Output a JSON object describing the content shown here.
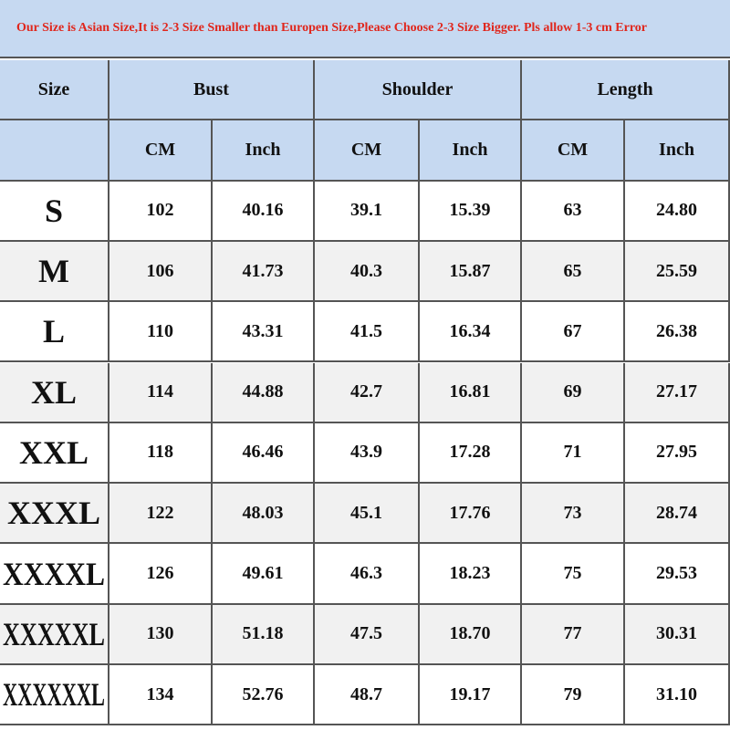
{
  "banner": "Our Size is Asian Size,It is 2-3 Size Smaller than Europen Size,Please Choose 2-3 Size Bigger. Pls allow 1-3 cm Error",
  "table": {
    "header": {
      "size": "Size",
      "groups": [
        "Bust",
        "Shoulder",
        "Length"
      ],
      "units": [
        "CM",
        "Inch",
        "CM",
        "Inch",
        "CM",
        "Inch"
      ]
    },
    "rows": [
      [
        "S",
        "102",
        "40.16",
        "39.1",
        "15.39",
        "63",
        "24.80"
      ],
      [
        "M",
        "106",
        "41.73",
        "40.3",
        "15.87",
        "65",
        "25.59"
      ],
      [
        "L",
        "110",
        "43.31",
        "41.5",
        "16.34",
        "67",
        "26.38"
      ],
      [
        "XL",
        "114",
        "44.88",
        "42.7",
        "16.81",
        "69",
        "27.17"
      ],
      [
        "XXL",
        "118",
        "46.46",
        "43.9",
        "17.28",
        "71",
        "27.95"
      ],
      [
        "XXXL",
        "122",
        "48.03",
        "45.1",
        "17.76",
        "73",
        "28.74"
      ],
      [
        "XXXXL",
        "126",
        "49.61",
        "46.3",
        "18.23",
        "75",
        "29.53"
      ],
      [
        "XXXXXL",
        "130",
        "51.18",
        "47.5",
        "18.70",
        "77",
        "30.31"
      ],
      [
        "XXXXXXL",
        "134",
        "52.76",
        "48.7",
        "19.17",
        "79",
        "31.10"
      ]
    ]
  }
}
